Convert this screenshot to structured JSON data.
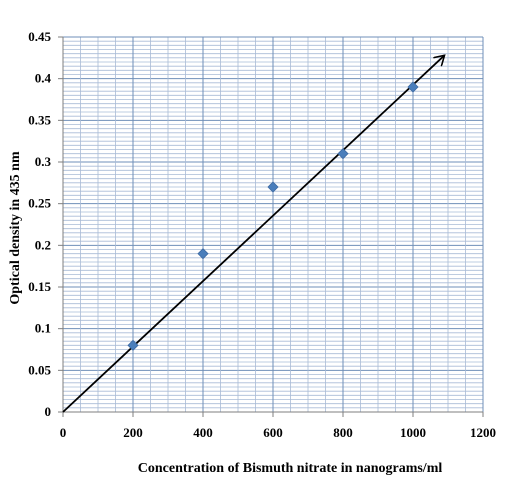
{
  "chart_data": {
    "type": "scatter",
    "xlabel": "Concentration of Bismuth nitrate in nanograms/ml",
    "ylabel": "Optical density in 435 nm",
    "xlim": [
      0,
      1200
    ],
    "ylim": [
      0,
      0.45
    ],
    "x_ticks": [
      "0",
      "200",
      "400",
      "600",
      "800",
      "1000",
      "1200"
    ],
    "y_ticks": [
      "0",
      "0.05",
      "0.1",
      "0.15",
      "0.2",
      "0.25",
      "0.3",
      "0.35",
      "0.4",
      "0.45"
    ],
    "grid": true,
    "series": [
      {
        "x": [
          200,
          400,
          600,
          800,
          1000
        ],
        "y": [
          0.08,
          0.19,
          0.27,
          0.31,
          0.39
        ],
        "marker": "diamond",
        "color": "#4a7ebb"
      }
    ],
    "trendline": {
      "from": [
        0,
        0
      ],
      "to": [
        1090,
        0.428
      ],
      "arrow": true,
      "color": "#000000"
    }
  }
}
